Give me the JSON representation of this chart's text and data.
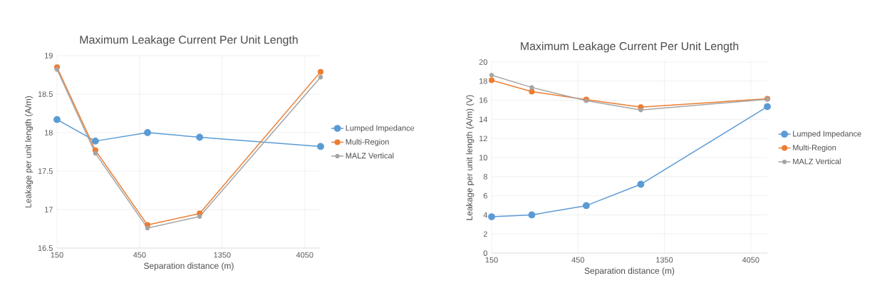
{
  "chart_data": [
    {
      "type": "line",
      "title": "Maximum Leakage Current Per Unit Length",
      "xlabel": "Separation distance (m)",
      "ylabel": "Leakage per unit length (A/m)",
      "log": "x",
      "x": [
        150,
        250,
        500,
        1000,
        5000
      ],
      "xlim": [
        150,
        5000
      ],
      "xticks": [
        150,
        450,
        1350,
        4050
      ],
      "ylim": [
        16.5,
        19
      ],
      "yticks": [
        16.5,
        17,
        17.5,
        18,
        18.5,
        19
      ],
      "grid": true,
      "legend": "right",
      "marker": "circle",
      "series": [
        {
          "name": "Lumped Impedance",
          "color": "#5b9bd5",
          "values": [
            18.17,
            17.89,
            18.0,
            17.94,
            17.82
          ]
        },
        {
          "name": "Multi-Region",
          "color": "#ed7d31",
          "values": [
            18.85,
            17.77,
            16.8,
            16.95,
            18.79
          ]
        },
        {
          "name": "MALZ Vertical",
          "color": "#a5a5a5",
          "values": [
            18.82,
            17.73,
            16.76,
            16.91,
            18.72
          ]
        }
      ]
    },
    {
      "type": "line",
      "title": "Maximum Leakage Current Per Unit Length",
      "xlabel": "Separation distance (m)",
      "ylabel": "Leakage per unit length (A/m) (V)",
      "log": "x",
      "x": [
        150,
        250,
        500,
        1000,
        5000
      ],
      "xlim": [
        150,
        5000
      ],
      "xticks": [
        150,
        450,
        1350,
        4050
      ],
      "ylim": [
        0,
        20
      ],
      "yticks": [
        0,
        2,
        4,
        6,
        8,
        10,
        12,
        14,
        16,
        18,
        20
      ],
      "grid": true,
      "legend": "right",
      "marker": "circle",
      "series": [
        {
          "name": "Lumped Impedance",
          "color": "#5b9bd5",
          "values": [
            3.8,
            4.0,
            4.97,
            7.2,
            15.33
          ]
        },
        {
          "name": "Multi-Region",
          "color": "#ed7d31",
          "values": [
            18.1,
            16.9,
            16.07,
            15.28,
            16.15
          ]
        },
        {
          "name": "MALZ Vertical",
          "color": "#a5a5a5",
          "values": [
            18.63,
            17.34,
            15.95,
            14.98,
            16.1
          ]
        }
      ]
    }
  ]
}
